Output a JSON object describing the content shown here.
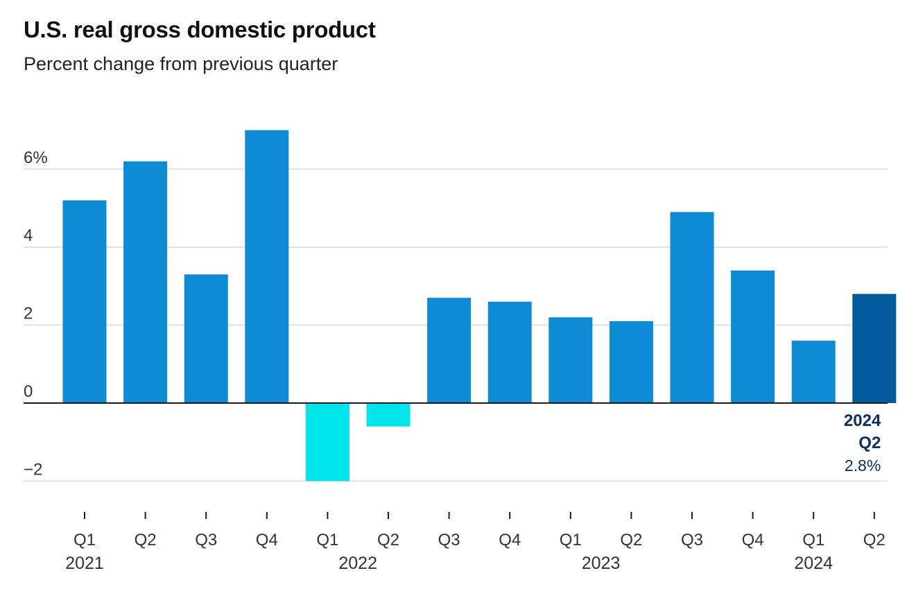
{
  "chart_data": {
    "type": "bar",
    "title": "U.S. real gross domestic product",
    "subtitle": "Percent change from previous quarter",
    "xlabel": "",
    "ylabel": "",
    "ylim": [
      -2.5,
      7.5
    ],
    "yticks": [
      -2,
      0,
      2,
      4,
      6
    ],
    "ytick_labels": [
      "−2",
      "0",
      "2",
      "4",
      "6%"
    ],
    "grid": true,
    "categories": [
      "Q1",
      "Q2",
      "Q3",
      "Q4",
      "Q1",
      "Q2",
      "Q3",
      "Q4",
      "Q1",
      "Q2",
      "Q3",
      "Q4",
      "Q1",
      "Q2"
    ],
    "years": [
      {
        "label": "2021",
        "start": 0,
        "end": 0
      },
      {
        "label": "2022",
        "start": 4,
        "end": 5
      },
      {
        "label": "2023",
        "start": 8,
        "end": 9
      },
      {
        "label": "2024",
        "start": 12,
        "end": 12
      }
    ],
    "values": [
      5.2,
      6.2,
      3.3,
      7.0,
      -2.0,
      -0.6,
      2.7,
      2.6,
      2.2,
      2.1,
      4.9,
      3.4,
      1.6,
      2.8
    ],
    "colors": {
      "positive": "#0d8bd4",
      "negative": "#00e5eb",
      "highlight": "#005a9c",
      "callout_text": "#0b2f66",
      "grid": "#d9d9d9",
      "axis": "#1a1a1a"
    },
    "highlight_index": 13,
    "callout": {
      "year": "2024",
      "quarter": "Q2",
      "value": "2.8%"
    }
  }
}
